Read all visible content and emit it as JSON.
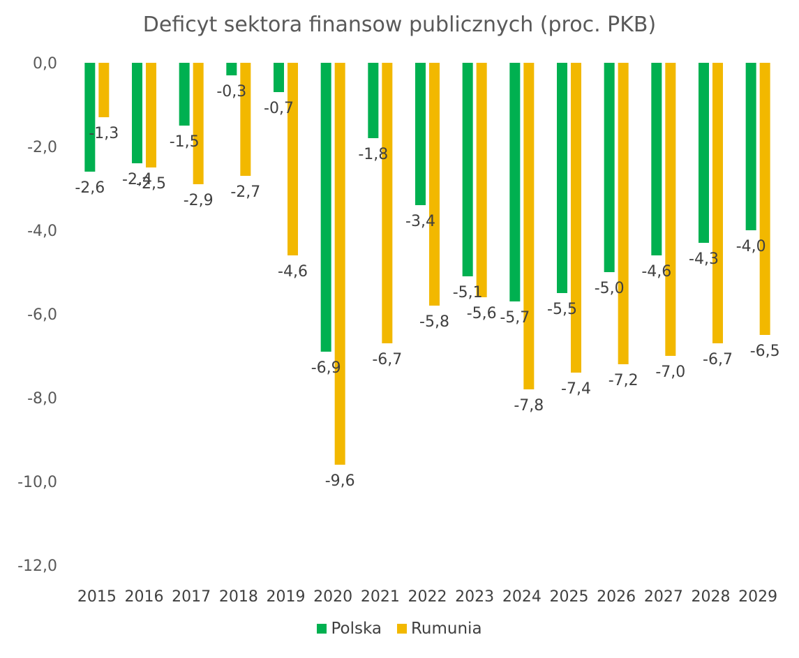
{
  "chart_data": {
    "type": "bar",
    "title": "Deficyt sektora finansow publicznych (proc. PKB)",
    "xlabel": "",
    "ylabel": "",
    "categories": [
      "2015",
      "2016",
      "2017",
      "2018",
      "2019",
      "2020",
      "2021",
      "2022",
      "2023",
      "2024",
      "2025",
      "2026",
      "2027",
      "2028",
      "2029"
    ],
    "series": [
      {
        "name": "Polska",
        "color": "#00B050",
        "values": [
          -2.6,
          -2.4,
          -1.5,
          -0.3,
          -0.7,
          -6.9,
          -1.8,
          -3.4,
          -5.1,
          -5.7,
          -5.5,
          -5.0,
          -4.6,
          -4.3,
          -4.0
        ],
        "labels": [
          "-2,6",
          "-2,4",
          "-1,5",
          "-0,3",
          "-0,7",
          "-6,9",
          "-1,8",
          "-3,4",
          "-5,1",
          "-5,7",
          "-5,5",
          "-5,0",
          "-4,6",
          "-4,3",
          "-4,0"
        ]
      },
      {
        "name": "Rumunia",
        "color": "#F2B800",
        "values": [
          -1.3,
          -2.5,
          -2.9,
          -2.7,
          -4.6,
          -9.6,
          -6.7,
          -5.8,
          -5.6,
          -7.8,
          -7.4,
          -7.2,
          -7.0,
          -6.7,
          -6.5
        ],
        "labels": [
          "-1,3",
          "-2,5",
          "-2,9",
          "-2,7",
          "-4,6",
          "-9,6",
          "-6,7",
          "-5,8",
          "-5,6",
          "-7,8",
          "-7,4",
          "-7,2",
          "-7,0",
          "-6,7",
          "-6,5"
        ]
      }
    ],
    "ylim": [
      -12,
      0
    ],
    "yticks": [
      0,
      -2,
      -4,
      -6,
      -8,
      -10,
      -12
    ],
    "ytick_labels": [
      "0,0",
      "-2,0",
      "-4,0",
      "-6,0",
      "-8,0",
      "-10,0",
      "-12,0"
    ],
    "grid": false,
    "legend_position": "bottom"
  }
}
